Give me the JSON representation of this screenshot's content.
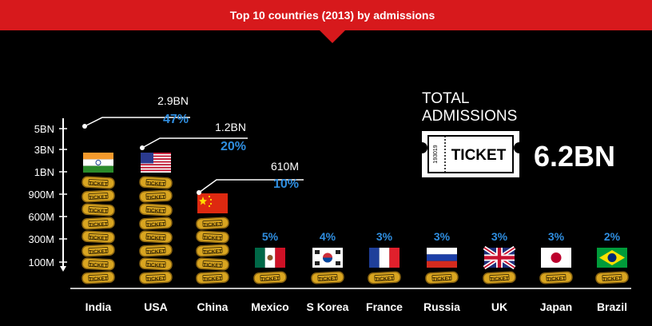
{
  "header": {
    "title": "Top 10 countries (2013) by admissions",
    "bg_color": "#d7191c"
  },
  "total": {
    "label_line1": "TOTAL",
    "label_line2": "ADMISSIONS",
    "value": "6.2BN",
    "ticket_text": "TICKET",
    "ticket_serial": "193019"
  },
  "ticket_label": "TICKET",
  "colors": {
    "accent_pct": "#2f8ee0",
    "coin_gold": "#d9a520",
    "coin_dark": "#8a6410",
    "text": "#ffffff"
  },
  "callouts": [
    {
      "value": "2.9BN",
      "pct": "47%"
    },
    {
      "value": "1.2BN",
      "pct": "20%"
    },
    {
      "value": "610M",
      "pct": "10%"
    }
  ],
  "chart_data": {
    "type": "bar",
    "title": "Top 10 countries (2013) by admissions",
    "y_tick_labels": [
      "5BN",
      "3BN",
      "1BN",
      "900M",
      "600M",
      "300M",
      "100M"
    ],
    "categories": [
      "India",
      "USA",
      "China",
      "Mexico",
      "S Korea",
      "France",
      "Russia",
      "UK",
      "Japan",
      "Brazil"
    ],
    "flags": [
      "india-flag",
      "usa-flag",
      "china-flag",
      "mexico-flag",
      "south-korea-flag",
      "france-flag",
      "russia-flag",
      "uk-flag",
      "japan-flag",
      "brazil-flag"
    ],
    "percent_labels": [
      "47%",
      "20%",
      "10%",
      "5%",
      "4%",
      "3%",
      "3%",
      "3%",
      "3%",
      "2%"
    ],
    "coin_counts": [
      8,
      8,
      5,
      1,
      1,
      1,
      1,
      1,
      1,
      1
    ],
    "values": [
      2.9,
      1.2,
      0.61,
      0.31,
      0.25,
      0.19,
      0.19,
      0.19,
      0.19,
      0.12
    ],
    "unit": "BN admissions",
    "xlabel": "",
    "ylabel": ""
  }
}
